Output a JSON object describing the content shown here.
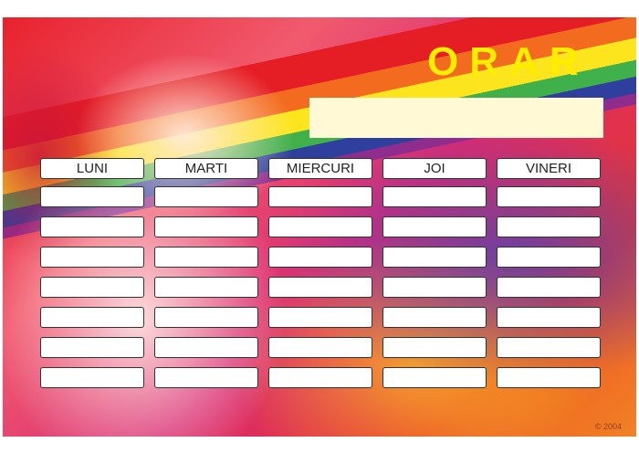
{
  "title": "ORAR",
  "name_field": "",
  "days": [
    "LUNI",
    "MARTI",
    "MIERCURI",
    "JOI",
    "VINERI"
  ],
  "rows": [
    [
      "",
      "",
      "",
      "",
      ""
    ],
    [
      "",
      "",
      "",
      "",
      ""
    ],
    [
      "",
      "",
      "",
      "",
      ""
    ],
    [
      "",
      "",
      "",
      "",
      ""
    ],
    [
      "",
      "",
      "",
      "",
      ""
    ],
    [
      "",
      "",
      "",
      "",
      ""
    ],
    [
      "",
      "",
      "",
      "",
      ""
    ]
  ],
  "signature": "© 2004",
  "colors": {
    "title": "#ffed00",
    "name_field_bg": "#fff9d6"
  }
}
